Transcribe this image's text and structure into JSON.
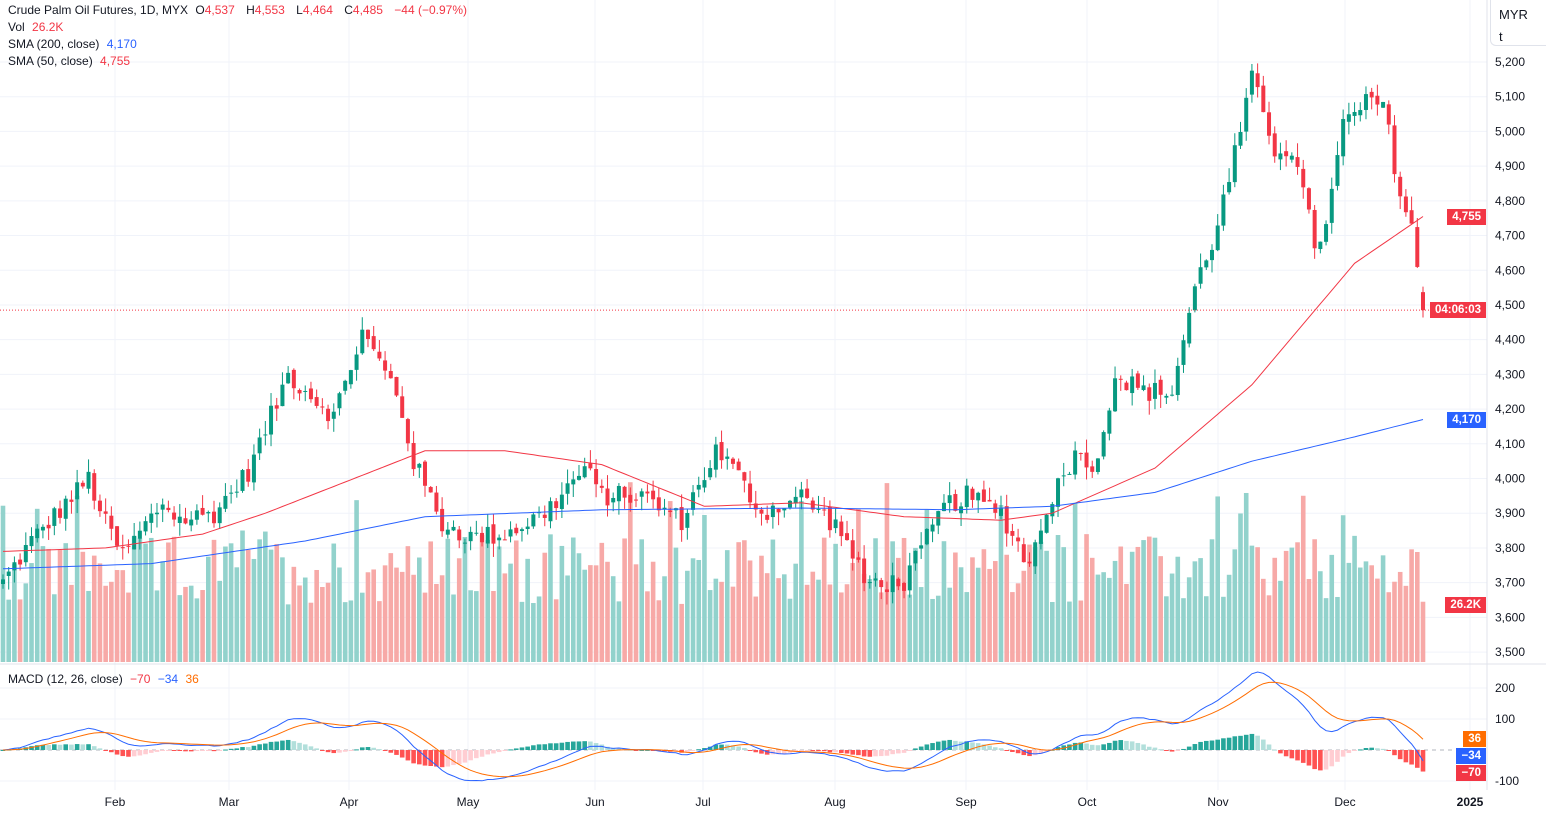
{
  "legend": {
    "title": "Crude Palm Oil Futures, 1D, MYX",
    "o_label": "O",
    "o": "4,537",
    "h_label": "H",
    "h": "4,553",
    "l_label": "L",
    "l": "4,464",
    "c_label": "C",
    "c": "4,485",
    "change": "−44 (−0.97%)",
    "vol_label": "Vol",
    "vol": "26.2K",
    "sma200_label": "SMA (200, close)",
    "sma200": "4,170",
    "sma50_label": "SMA (50, close)",
    "sma50": "4,755",
    "macd_label": "MACD (12, 26, close)",
    "macd_hist": "−70",
    "macd_line": "−34",
    "macd_signal": "36"
  },
  "axis": {
    "unit": "MYR",
    "unit2": "t",
    "countdown": "04:06:03",
    "last_vol": "26.2K",
    "sma50_tag": "4,755",
    "sma200_tag": "4,170"
  },
  "colors": {
    "up": "#089981",
    "down": "#f23645",
    "sma50": "#f23645",
    "sma200": "#2962ff",
    "macd": "#2962ff",
    "signal": "#ff6d00"
  },
  "chart_data": {
    "type": "candlestick",
    "price_ticks": [
      3500,
      3600,
      3700,
      3800,
      3900,
      4000,
      4100,
      4200,
      4300,
      4400,
      4500,
      4600,
      4700,
      4800,
      4900,
      5000,
      5100,
      5200
    ],
    "macd_ticks": [
      -100,
      100,
      200
    ],
    "months": [
      "Feb",
      "Mar",
      "Apr",
      "May",
      "Jun",
      "Jul",
      "Aug",
      "Sep",
      "Oct",
      "Nov",
      "Dec",
      "2025"
    ],
    "close_path": [
      [
        0,
        3700
      ],
      [
        5,
        3820
      ],
      [
        15,
        4000
      ],
      [
        18,
        3870
      ],
      [
        21,
        3780
      ],
      [
        28,
        3930
      ],
      [
        31,
        3880
      ],
      [
        37,
        3900
      ],
      [
        43,
        4020
      ],
      [
        50,
        4300
      ],
      [
        58,
        4180
      ],
      [
        63,
        4420
      ],
      [
        69,
        4250
      ],
      [
        72,
        4050
      ],
      [
        77,
        3870
      ],
      [
        82,
        3830
      ],
      [
        88,
        3840
      ],
      [
        95,
        3900
      ],
      [
        102,
        4030
      ],
      [
        105,
        3950
      ],
      [
        112,
        3950
      ],
      [
        119,
        3880
      ],
      [
        125,
        4080
      ],
      [
        128,
        4030
      ],
      [
        133,
        3900
      ],
      [
        140,
        3950
      ],
      [
        147,
        3850
      ],
      [
        151,
        3700
      ],
      [
        158,
        3700
      ],
      [
        165,
        3920
      ],
      [
        169,
        3950
      ],
      [
        175,
        3900
      ],
      [
        180,
        3750
      ],
      [
        183,
        3920
      ],
      [
        189,
        4100
      ],
      [
        191,
        4000
      ],
      [
        195,
        4300
      ],
      [
        200,
        4250
      ],
      [
        205,
        4250
      ],
      [
        209,
        4550
      ],
      [
        212,
        4680
      ],
      [
        215,
        4860
      ],
      [
        219,
        5150
      ],
      [
        223,
        4950
      ],
      [
        226,
        4950
      ],
      [
        230,
        4680
      ],
      [
        232,
        4720
      ],
      [
        235,
        5020
      ],
      [
        239,
        5080
      ],
      [
        242,
        5080
      ],
      [
        245,
        4820
      ],
      [
        247,
        4730
      ],
      [
        249,
        4485
      ]
    ],
    "sma50_path": [
      [
        0,
        3790
      ],
      [
        18,
        3800
      ],
      [
        35,
        3840
      ],
      [
        46,
        3900
      ],
      [
        60,
        3990
      ],
      [
        74,
        4080
      ],
      [
        88,
        4080
      ],
      [
        105,
        4040
      ],
      [
        123,
        3920
      ],
      [
        140,
        3930
      ],
      [
        158,
        3890
      ],
      [
        175,
        3880
      ],
      [
        184,
        3900
      ],
      [
        202,
        4030
      ],
      [
        219,
        4270
      ],
      [
        237,
        4620
      ],
      [
        249,
        4755
      ]
    ],
    "sma200_path": [
      [
        0,
        3740
      ],
      [
        26,
        3755
      ],
      [
        53,
        3820
      ],
      [
        74,
        3890
      ],
      [
        105,
        3910
      ],
      [
        140,
        3915
      ],
      [
        167,
        3910
      ],
      [
        184,
        3920
      ],
      [
        202,
        3960
      ],
      [
        219,
        4050
      ],
      [
        237,
        4120
      ],
      [
        249,
        4170
      ]
    ],
    "bars": 250,
    "last": {
      "open": 4537,
      "high": 4553,
      "low": 4464,
      "close": 4485,
      "volume_k": 26.2
    }
  }
}
